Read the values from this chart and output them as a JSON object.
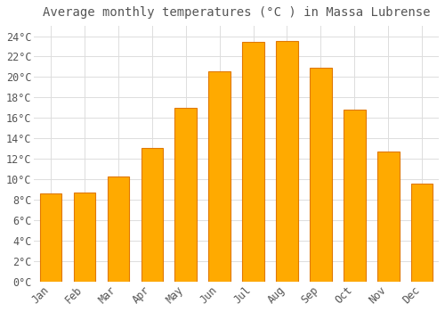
{
  "title": "Average monthly temperatures (°C ) in Massa Lubrense",
  "months": [
    "Jan",
    "Feb",
    "Mar",
    "Apr",
    "May",
    "Jun",
    "Jul",
    "Aug",
    "Sep",
    "Oct",
    "Nov",
    "Dec"
  ],
  "temperatures": [
    8.6,
    8.7,
    10.3,
    13.1,
    17.0,
    20.6,
    23.4,
    23.5,
    20.9,
    16.8,
    12.7,
    9.6
  ],
  "bar_color": "#FFAA00",
  "bar_edge_color": "#E07800",
  "background_color": "#FFFFFF",
  "plot_bg_color": "#FFFFFF",
  "grid_color": "#DDDDDD",
  "text_color": "#555555",
  "ylim": [
    0,
    25
  ],
  "yticks": [
    0,
    2,
    4,
    6,
    8,
    10,
    12,
    14,
    16,
    18,
    20,
    22,
    24
  ],
  "title_fontsize": 10,
  "tick_fontsize": 8.5,
  "bar_width": 0.65
}
